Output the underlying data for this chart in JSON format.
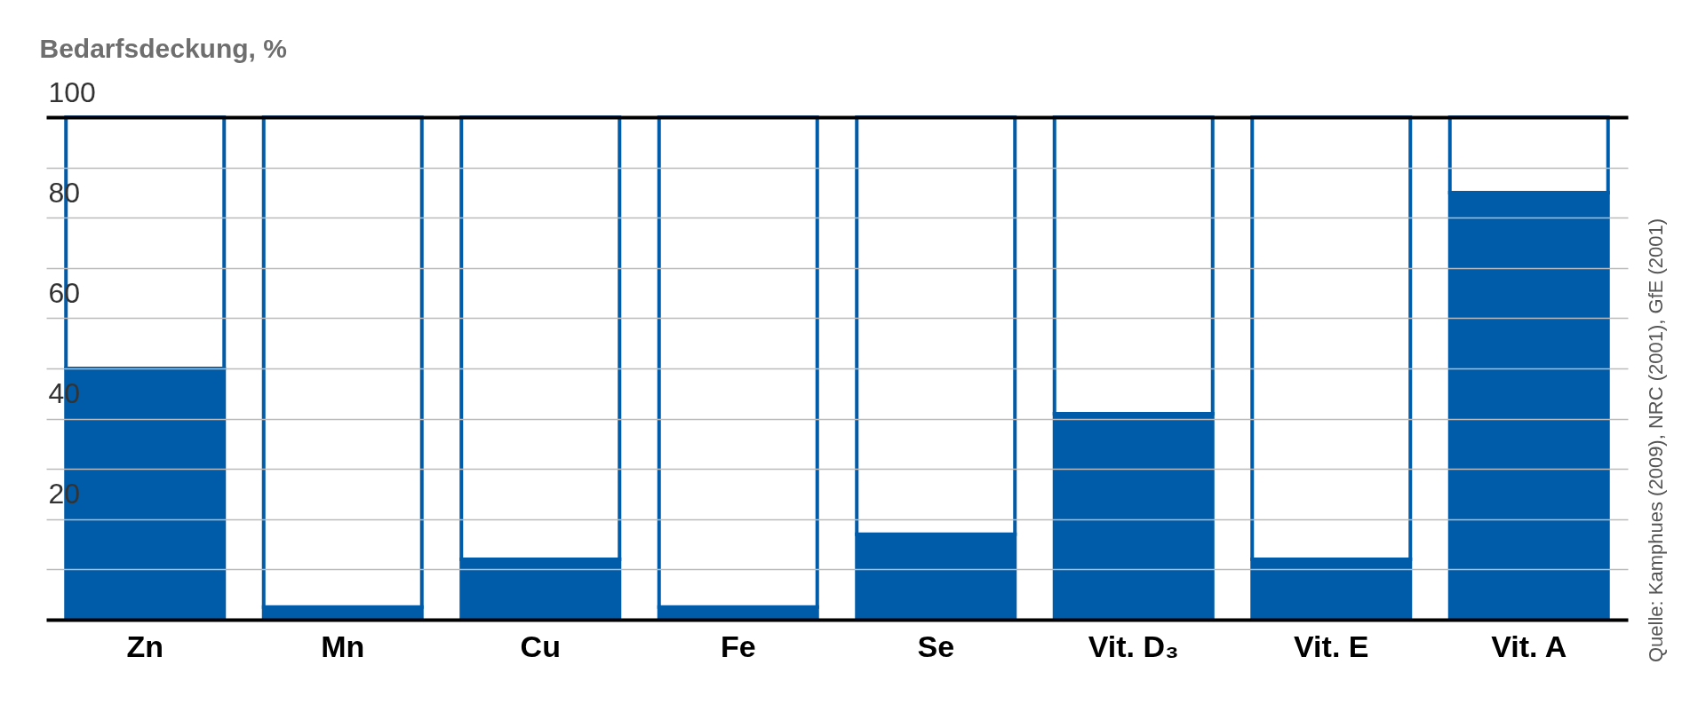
{
  "chart_data": {
    "type": "bar",
    "stacked": true,
    "ylabel": "Bedarfsdeckung, %",
    "categories": [
      "Zn",
      "Mn",
      "Cu",
      "Fe",
      "Se",
      "Vit. D₃",
      "Vit. E",
      "Vit. A"
    ],
    "series": [
      {
        "color": "#005ca9",
        "values": [
          50,
          2.5,
          12,
          2.5,
          17,
          41,
          12,
          85
        ]
      },
      {
        "color": "#ffffff",
        "values": [
          50,
          97.5,
          88,
          97.5,
          83,
          59,
          88,
          15
        ]
      }
    ],
    "ylim": [
      0,
      100
    ],
    "yticks": [
      {
        "value": 0,
        "label": null
      },
      {
        "value": 10,
        "label": null
      },
      20,
      {
        "value": 30,
        "label": null
      },
      40,
      {
        "value": 50,
        "label": null
      },
      60,
      {
        "value": 70,
        "label": null
      },
      80,
      {
        "value": 90,
        "label": null
      },
      100
    ],
    "grid": "y",
    "annotations": [
      "Quelle: Kamphues (2009), NRC (2001), GfE (2001)"
    ]
  }
}
